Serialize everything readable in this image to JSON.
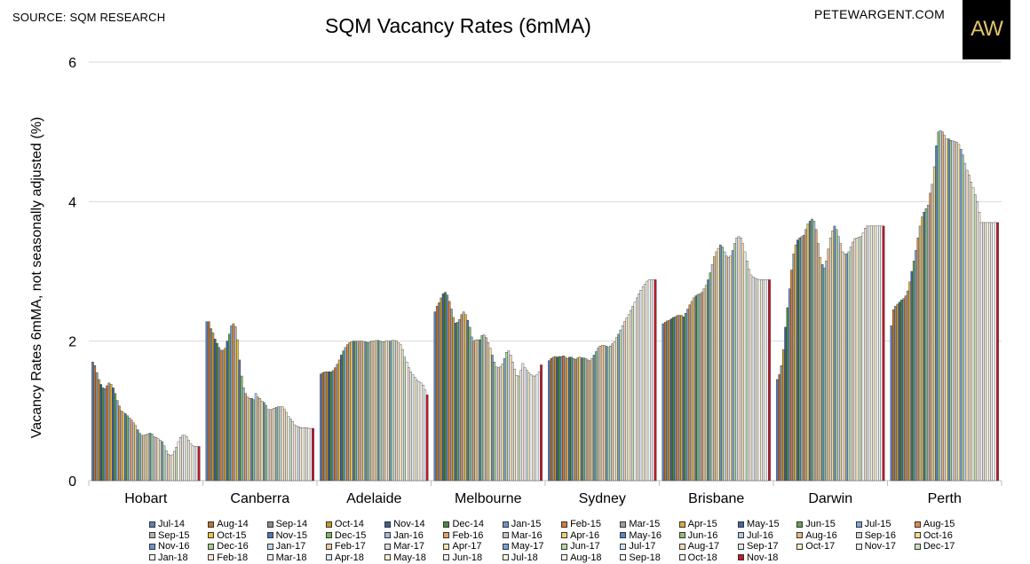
{
  "header": {
    "source": "SOURCE: SQM RESEARCH",
    "site": "PETEWARGENT.COM",
    "logo_text": "AW"
  },
  "chart_data": {
    "type": "bar",
    "title": "SQM Vacancy Rates (6mMA)",
    "ylabel": "Vacancy Rates 6mMA, not seasonally adjusted (%)",
    "xlabel": "",
    "ylim": [
      0,
      6
    ],
    "yticks": [
      0,
      2,
      4,
      6
    ],
    "grid": true,
    "legend_position": "bottom",
    "categories": [
      "Hobart",
      "Canberra",
      "Adelaide",
      "Melbourne",
      "Sydney",
      "Brisbane",
      "Darwin",
      "Perth"
    ],
    "series_names": [
      "Jul-14",
      "Aug-14",
      "Sep-14",
      "Oct-14",
      "Nov-14",
      "Dec-14",
      "Jan-15",
      "Feb-15",
      "Mar-15",
      "Apr-15",
      "May-15",
      "Jun-15",
      "Jul-15",
      "Aug-15",
      "Sep-15",
      "Oct-15",
      "Nov-15",
      "Dec-15",
      "Jan-16",
      "Feb-16",
      "Mar-16",
      "Apr-16",
      "May-16",
      "Jun-16",
      "Jul-16",
      "Aug-16",
      "Sep-16",
      "Oct-16",
      "Nov-16",
      "Dec-16",
      "Jan-17",
      "Feb-17",
      "Mar-17",
      "Apr-17",
      "May-17",
      "Jun-17",
      "Jul-17",
      "Aug-17",
      "Sep-17",
      "Oct-17",
      "Nov-17",
      "Dec-17",
      "Jan-18",
      "Feb-18",
      "Mar-18",
      "Apr-18",
      "May-18",
      "Jun-18",
      "Jul-18",
      "Aug-18",
      "Sep-18",
      "Oct-18",
      "Nov-18"
    ],
    "series_colors": [
      "#5b80b8",
      "#c0722e",
      "#8c8c8c",
      "#c9962c",
      "#3d5f97",
      "#4f8a3a",
      "#6f93c6",
      "#d97b35",
      "#9e9e9e",
      "#e0ad32",
      "#3f67a8",
      "#6aa04a",
      "#7fa5d6",
      "#e08e3c",
      "#b3b3b3",
      "#f0c23c",
      "#4d76bd",
      "#7fb35c",
      "#9fbde3",
      "#e8a060",
      "#c4c4c4",
      "#f5d070",
      "#5a86c8",
      "#90c070",
      "#b0cbe8",
      "#eeb880",
      "#d4d4d4",
      "#f8dc8c",
      "#6b94d0",
      "#a6cc88",
      "#c0d6ee",
      "#f2c8a0",
      "#dcdcdc",
      "#fae4a8",
      "#7aa2d6",
      "#b8d8a0",
      "#d0e0f2",
      "#f6d6b8",
      "#e4e4e4",
      "#fcecc0",
      "#eaeaea",
      "#c8e2b8",
      "#f2f2f2",
      "#f8e6d6",
      "#ececec",
      "#dde8f4",
      "#fdf2d0",
      "#f0f0f0",
      "#fbf6e0",
      "#f4f4f4",
      "#f6f6f6",
      "#f8f8f8",
      "#c0192b"
    ],
    "values": {
      "Hobart": [
        1.7,
        1.65,
        1.55,
        1.45,
        1.38,
        1.33,
        1.32,
        1.36,
        1.4,
        1.38,
        1.33,
        1.25,
        1.15,
        1.07,
        1.0,
        0.98,
        0.96,
        0.93,
        0.9,
        0.87,
        0.83,
        0.79,
        0.73,
        0.68,
        0.65,
        0.65,
        0.66,
        0.67,
        0.68,
        0.67,
        0.63,
        0.62,
        0.6,
        0.58,
        0.56,
        0.5,
        0.43,
        0.38,
        0.36,
        0.37,
        0.42,
        0.48,
        0.56,
        0.62,
        0.65,
        0.65,
        0.63,
        0.58,
        0.53,
        0.5,
        0.49,
        0.49,
        0.49
      ],
      "Canberra": [
        2.28,
        2.28,
        2.18,
        2.12,
        2.03,
        1.97,
        1.91,
        1.87,
        1.87,
        1.9,
        2.0,
        2.1,
        2.22,
        2.25,
        2.21,
        2.02,
        1.73,
        1.5,
        1.33,
        1.25,
        1.2,
        1.18,
        1.18,
        1.16,
        1.25,
        1.2,
        1.18,
        1.14,
        1.12,
        1.08,
        1.02,
        1.02,
        1.02,
        1.04,
        1.05,
        1.06,
        1.06,
        1.06,
        1.02,
        0.98,
        0.92,
        0.88,
        0.85,
        0.8,
        0.78,
        0.77,
        0.76,
        0.76,
        0.76,
        0.76,
        0.75,
        0.75,
        0.75
      ],
      "Adelaide": [
        1.53,
        1.55,
        1.56,
        1.56,
        1.56,
        1.56,
        1.58,
        1.62,
        1.67,
        1.73,
        1.8,
        1.86,
        1.91,
        1.95,
        1.98,
        1.99,
        2.0,
        2.0,
        2.0,
        2.0,
        2.0,
        1.99,
        1.99,
        1.98,
        1.99,
        2.0,
        2.0,
        2.01,
        2.01,
        2.0,
        1.99,
        1.99,
        2.0,
        2.0,
        2.0,
        2.01,
        2.01,
        2.0,
        1.98,
        1.95,
        1.88,
        1.77,
        1.7,
        1.62,
        1.56,
        1.52,
        1.48,
        1.44,
        1.42,
        1.4,
        1.37,
        1.3,
        1.23
      ],
      "Melbourne": [
        2.42,
        2.5,
        2.55,
        2.62,
        2.68,
        2.7,
        2.66,
        2.57,
        2.46,
        2.34,
        2.26,
        2.27,
        2.31,
        2.38,
        2.42,
        2.38,
        2.3,
        2.2,
        2.06,
        2.0,
        2.02,
        2.02,
        2.02,
        2.08,
        2.09,
        2.05,
        1.98,
        1.9,
        1.8,
        1.7,
        1.63,
        1.62,
        1.63,
        1.67,
        1.75,
        1.84,
        1.86,
        1.8,
        1.7,
        1.6,
        1.51,
        1.5,
        1.58,
        1.68,
        1.62,
        1.58,
        1.55,
        1.52,
        1.5,
        1.5,
        1.52,
        1.56,
        1.66
      ],
      "Sydney": [
        1.72,
        1.75,
        1.77,
        1.78,
        1.77,
        1.78,
        1.78,
        1.79,
        1.77,
        1.75,
        1.77,
        1.77,
        1.75,
        1.74,
        1.76,
        1.77,
        1.76,
        1.76,
        1.75,
        1.73,
        1.72,
        1.75,
        1.8,
        1.85,
        1.9,
        1.93,
        1.94,
        1.94,
        1.93,
        1.91,
        1.93,
        1.96,
        1.99,
        2.05,
        2.1,
        2.16,
        2.22,
        2.28,
        2.33,
        2.38,
        2.44,
        2.5,
        2.56,
        2.62,
        2.68,
        2.73,
        2.78,
        2.82,
        2.86,
        2.88,
        2.88,
        2.88,
        2.88
      ],
      "Brisbane": [
        2.25,
        2.27,
        2.29,
        2.3,
        2.32,
        2.34,
        2.35,
        2.37,
        2.37,
        2.37,
        2.35,
        2.4,
        2.46,
        2.52,
        2.57,
        2.62,
        2.65,
        2.67,
        2.68,
        2.7,
        2.75,
        2.8,
        2.88,
        2.98,
        3.1,
        3.21,
        3.28,
        3.33,
        3.38,
        3.35,
        3.28,
        3.22,
        3.2,
        3.22,
        3.3,
        3.4,
        3.48,
        3.5,
        3.48,
        3.4,
        3.28,
        3.15,
        3.03,
        2.95,
        2.92,
        2.9,
        2.89,
        2.88,
        2.88,
        2.88,
        2.88,
        2.88,
        2.88
      ],
      "Darwin": [
        1.45,
        1.52,
        1.65,
        1.88,
        2.2,
        2.48,
        2.75,
        3.02,
        3.25,
        3.38,
        3.45,
        3.48,
        3.5,
        3.52,
        3.6,
        3.68,
        3.72,
        3.75,
        3.72,
        3.6,
        3.4,
        3.2,
        3.1,
        3.05,
        3.15,
        3.32,
        3.48,
        3.58,
        3.65,
        3.6,
        3.5,
        3.4,
        3.28,
        3.25,
        3.25,
        3.28,
        3.35,
        3.42,
        3.47,
        3.48,
        3.49,
        3.5,
        3.55,
        3.62,
        3.65,
        3.65,
        3.65,
        3.65,
        3.65,
        3.65,
        3.65,
        3.65,
        3.65
      ],
      "Perth": [
        2.22,
        2.45,
        2.5,
        2.53,
        2.56,
        2.59,
        2.61,
        2.65,
        2.72,
        2.85,
        3.0,
        3.15,
        3.3,
        3.48,
        3.65,
        3.78,
        3.85,
        3.9,
        3.95,
        4.12,
        4.25,
        4.5,
        4.8,
        5.0,
        5.02,
        5.0,
        4.95,
        4.9,
        4.9,
        4.88,
        4.87,
        4.86,
        4.85,
        4.82,
        4.75,
        4.67,
        4.55,
        4.45,
        4.38,
        4.28,
        4.2,
        4.1,
        4.0,
        3.85,
        3.7,
        3.7,
        3.7,
        3.7,
        3.7,
        3.7,
        3.7,
        3.7,
        3.7
      ]
    }
  }
}
